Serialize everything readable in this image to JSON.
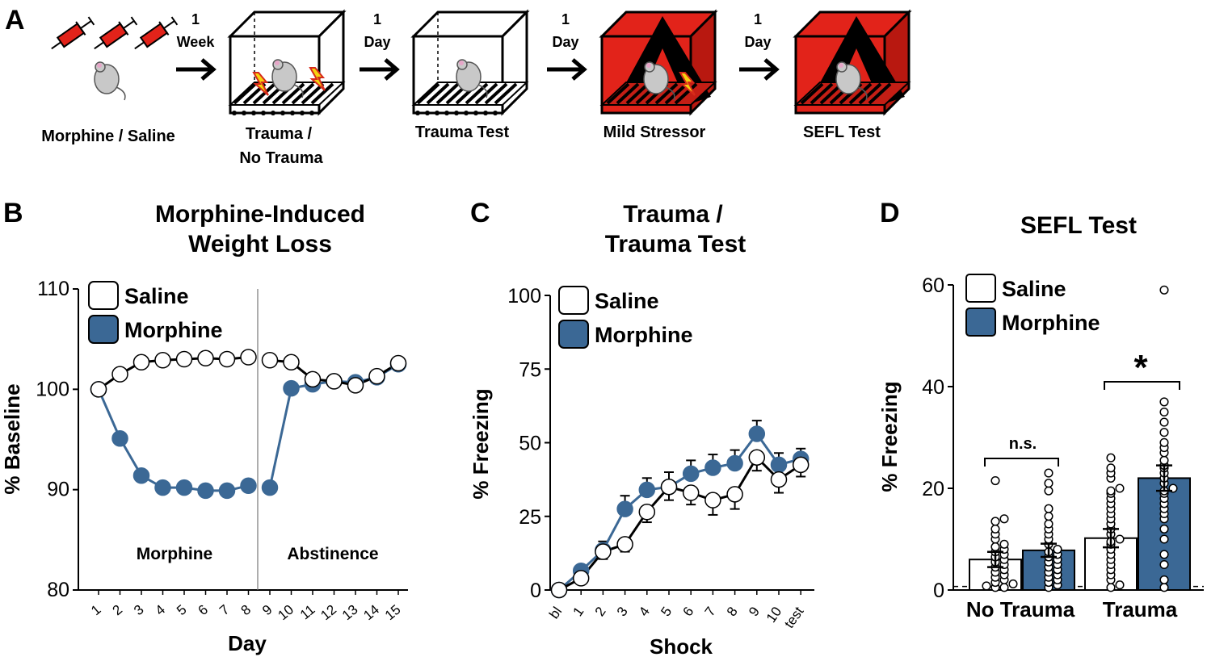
{
  "panel_letters": {
    "a": "A",
    "b": "B",
    "c": "C",
    "d": "D"
  },
  "colors": {
    "saline": "#ffffff",
    "morphine": "#3b6895",
    "box_red": "#e2231a",
    "stroke": "#000000"
  },
  "timeline": {
    "stages": [
      {
        "label": "Morphine / Saline",
        "icon": "syringes-and-rat-icon"
      },
      {
        "label_line1": "Trauma /",
        "label_line2": "No Trauma",
        "icon": "shock-box-icon"
      },
      {
        "label": "Trauma Test",
        "icon": "test-box-icon"
      },
      {
        "label": "Mild Stressor",
        "icon": "red-shock-box-icon"
      },
      {
        "label": "SEFL Test",
        "icon": "red-test-box-icon"
      }
    ],
    "intervals": [
      {
        "num": "1",
        "unit": "Week"
      },
      {
        "num": "1",
        "unit": "Day"
      },
      {
        "num": "1",
        "unit": "Day"
      },
      {
        "num": "1",
        "unit": "Day"
      }
    ]
  },
  "chart_data": [
    {
      "panel": "B",
      "type": "line",
      "title_line1": "Morphine-Induced",
      "title_line2": "Weight Loss",
      "xlabel": "Day",
      "ylabel": "% Baseline",
      "ylim": [
        80,
        110
      ],
      "yticks": [
        "80",
        "90",
        "100",
        "110"
      ],
      "categories": [
        "1",
        "2",
        "3",
        "4",
        "5",
        "6",
        "7",
        "8",
        "9",
        "10",
        "11",
        "12",
        "13",
        "14",
        "15"
      ],
      "phase_labels": [
        "Morphine",
        "Abstinence"
      ],
      "legend": [
        "Saline",
        "Morphine"
      ],
      "legend_position": "top-left",
      "series": [
        {
          "name": "Saline",
          "segments": [
            [
              100,
              101.5,
              102.7,
              102.9,
              103,
              103.1,
              103,
              103.2
            ],
            [
              102.9,
              102.7,
              101,
              100.8,
              100.4,
              101.3,
              102.6
            ]
          ]
        },
        {
          "name": "Morphine",
          "segments": [
            [
              100,
              95.1,
              91.4,
              90.2,
              90.2,
              89.9,
              89.9,
              90.4
            ],
            [
              90.2,
              100.1,
              100.5,
              100.8,
              100.7,
              101.2,
              102.5
            ]
          ]
        }
      ]
    },
    {
      "panel": "C",
      "type": "line",
      "title_line1": "Trauma /",
      "title_line2": "Trauma Test",
      "xlabel": "Shock",
      "ylabel": "% Freezing",
      "ylim": [
        0,
        100
      ],
      "yticks": [
        "0",
        "25",
        "50",
        "75",
        "100"
      ],
      "categories": [
        "bl",
        "1",
        "2",
        "3",
        "4",
        "5",
        "6",
        "7",
        "8",
        "9",
        "10",
        "test"
      ],
      "legend": [
        "Saline",
        "Morphine"
      ],
      "legend_position": "top-left",
      "series": [
        {
          "name": "Morphine",
          "values": [
            0,
            6.5,
            13.5,
            27.5,
            34,
            35,
            39.5,
            41.5,
            43,
            53,
            42.5,
            44.5
          ],
          "errors": [
            0,
            1.5,
            3,
            4.5,
            4,
            5,
            4.5,
            4.5,
            4.5,
            4.5,
            4,
            3.5
          ]
        },
        {
          "name": "Saline",
          "values": [
            0,
            4,
            13,
            15.5,
            26.5,
            35,
            33,
            30.5,
            32.5,
            45,
            37.5,
            42.5
          ],
          "errors": [
            0,
            1,
            2.5,
            2.5,
            3.5,
            4.5,
            4,
            5,
            5,
            4.5,
            4.5,
            4
          ]
        }
      ]
    },
    {
      "panel": "D",
      "type": "bar",
      "title": "SEFL Test",
      "ylabel": "% Freezing",
      "ylim": [
        0,
        60
      ],
      "yticks": [
        "0",
        "20",
        "40",
        "60"
      ],
      "categories": [
        "No Trauma",
        "Trauma"
      ],
      "legend": [
        "Saline",
        "Morphine"
      ],
      "legend_position": "top-left",
      "series": [
        {
          "name": "Saline",
          "values": [
            6,
            10.2
          ],
          "errors": [
            1.5,
            1.8
          ]
        },
        {
          "name": "Morphine",
          "values": [
            7.8,
            22
          ],
          "errors": [
            1.3,
            2.5
          ]
        }
      ],
      "points": [
        [
          0.5,
          0.5,
          0.8,
          1.2,
          1.5,
          2,
          2.5,
          3,
          3.5,
          4,
          4.5,
          5,
          5.5,
          6,
          6.5,
          7,
          7.5,
          8,
          8.5,
          9,
          10,
          11,
          12,
          13.5,
          14,
          21.5
        ],
        [
          0.5,
          1,
          1.5,
          2,
          2.5,
          3,
          3.5,
          4,
          4.5,
          5,
          5.5,
          6,
          6.5,
          7,
          7.5,
          8,
          9,
          10,
          11,
          12,
          13,
          14.5,
          16,
          19.5,
          21,
          23
        ],
        [
          0.5,
          1,
          2,
          3,
          4,
          5,
          6,
          7,
          8,
          9,
          9.5,
          10,
          11,
          12,
          13,
          14,
          15,
          16,
          17,
          18,
          19,
          19.5,
          20,
          22,
          23,
          24,
          26
        ],
        [
          0.5,
          2,
          5,
          7,
          10,
          12,
          14,
          15,
          16,
          17,
          18,
          19,
          19.5,
          20,
          21,
          22,
          23,
          24,
          24.5,
          25.5,
          27,
          28,
          29,
          31,
          33,
          35,
          37,
          59
        ]
      ],
      "baseline": 0.7,
      "comparisons": [
        {
          "group": "No Trauma",
          "label": "n.s."
        },
        {
          "group": "Trauma",
          "label": "*"
        }
      ]
    }
  ]
}
